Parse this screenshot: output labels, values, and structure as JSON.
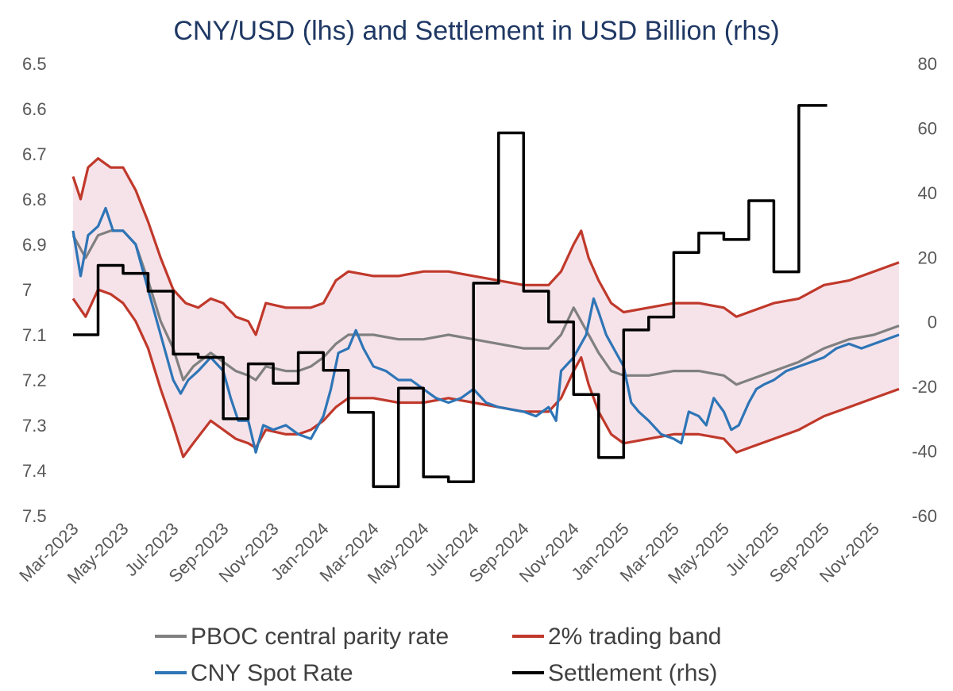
{
  "chart_data": {
    "type": "line",
    "title": "CNY/USD (lhs) and Settlement in USD Billion (rhs)",
    "left_axis": {
      "ticks": [
        "6.5",
        "6.6",
        "6.7",
        "6.8",
        "6.9",
        "7",
        "7.1",
        "7.2",
        "7.3",
        "7.4",
        "7.5"
      ],
      "min": 6.5,
      "max": 7.5,
      "inverted": true
    },
    "right_axis": {
      "ticks": [
        "80",
        "60",
        "40",
        "20",
        "0",
        "-20",
        "-40",
        "-60"
      ],
      "min": -60,
      "max": 80
    },
    "x_tick_labels": [
      "Mar-2023",
      "May-2023",
      "Jul-2023",
      "Sep-2023",
      "Nov-2023",
      "Jan-2024",
      "Mar-2024",
      "May-2024",
      "Jul-2024",
      "Sep-2024",
      "Nov-2024",
      "Jan-2025",
      "Mar-2025",
      "May-2025",
      "Jul-2025",
      "Sep-2025",
      "Nov-2025"
    ],
    "x_range_months": [
      0,
      33
    ],
    "legend": [
      {
        "name": "PBOC central parity rate",
        "color": "#808080"
      },
      {
        "name": "2% trading band",
        "color": "#c0392b"
      },
      {
        "name": "CNY Spot Rate",
        "color": "#2e75b6"
      },
      {
        "name": "Settlement (rhs)",
        "color": "#000000"
      }
    ],
    "band_fill_color": "#f6e3ea",
    "series": [
      {
        "name": "PBOC central parity rate",
        "axis": "left",
        "color": "#808080",
        "points": [
          [
            0,
            6.88
          ],
          [
            0.5,
            6.93
          ],
          [
            1,
            6.88
          ],
          [
            1.5,
            6.87
          ],
          [
            2,
            6.87
          ],
          [
            2.5,
            6.9
          ],
          [
            3,
            6.98
          ],
          [
            3.5,
            7.07
          ],
          [
            4,
            7.13
          ],
          [
            4.4,
            7.2
          ],
          [
            4.8,
            7.17
          ],
          [
            5.5,
            7.14
          ],
          [
            6,
            7.16
          ],
          [
            6.5,
            7.18
          ],
          [
            7,
            7.19
          ],
          [
            7.3,
            7.2
          ],
          [
            7.7,
            7.17
          ],
          [
            8.5,
            7.18
          ],
          [
            9,
            7.18
          ],
          [
            9.5,
            7.17
          ],
          [
            10,
            7.15
          ],
          [
            10.5,
            7.12
          ],
          [
            11,
            7.1
          ],
          [
            12,
            7.1
          ],
          [
            13,
            7.11
          ],
          [
            14,
            7.11
          ],
          [
            15,
            7.1
          ],
          [
            16,
            7.11
          ],
          [
            17,
            7.12
          ],
          [
            18,
            7.13
          ],
          [
            19,
            7.13
          ],
          [
            19.5,
            7.1
          ],
          [
            20,
            7.04
          ],
          [
            20.5,
            7.09
          ],
          [
            21,
            7.14
          ],
          [
            21.5,
            7.18
          ],
          [
            22,
            7.19
          ],
          [
            23,
            7.19
          ],
          [
            24,
            7.18
          ],
          [
            25,
            7.18
          ],
          [
            26,
            7.19
          ],
          [
            26.5,
            7.21
          ],
          [
            27,
            7.2
          ],
          [
            28,
            7.18
          ],
          [
            29,
            7.16
          ],
          [
            30,
            7.13
          ],
          [
            31,
            7.11
          ],
          [
            32,
            7.1
          ],
          [
            33,
            7.08
          ]
        ]
      },
      {
        "name": "2% trading band (upper)",
        "axis": "left",
        "color": "#c0392b",
        "points": [
          [
            0,
            6.75
          ],
          [
            0.3,
            6.8
          ],
          [
            0.6,
            6.73
          ],
          [
            1,
            6.71
          ],
          [
            1.5,
            6.73
          ],
          [
            2,
            6.73
          ],
          [
            2.5,
            6.78
          ],
          [
            3,
            6.85
          ],
          [
            3.5,
            6.93
          ],
          [
            4,
            7.0
          ],
          [
            4.5,
            7.03
          ],
          [
            5,
            7.04
          ],
          [
            5.5,
            7.02
          ],
          [
            6,
            7.03
          ],
          [
            6.5,
            7.06
          ],
          [
            7,
            7.07
          ],
          [
            7.3,
            7.1
          ],
          [
            7.7,
            7.03
          ],
          [
            8.5,
            7.04
          ],
          [
            9,
            7.04
          ],
          [
            9.5,
            7.04
          ],
          [
            10,
            7.03
          ],
          [
            10.5,
            6.98
          ],
          [
            11,
            6.96
          ],
          [
            12,
            6.97
          ],
          [
            13,
            6.97
          ],
          [
            14,
            6.96
          ],
          [
            15,
            6.96
          ],
          [
            16,
            6.97
          ],
          [
            17,
            6.98
          ],
          [
            18,
            6.99
          ],
          [
            19,
            6.99
          ],
          [
            19.5,
            6.96
          ],
          [
            20,
            6.9
          ],
          [
            20.3,
            6.87
          ],
          [
            20.6,
            6.93
          ],
          [
            21,
            6.98
          ],
          [
            21.5,
            7.03
          ],
          [
            22,
            7.05
          ],
          [
            23,
            7.04
          ],
          [
            24,
            7.03
          ],
          [
            25,
            7.03
          ],
          [
            26,
            7.04
          ],
          [
            26.5,
            7.06
          ],
          [
            27,
            7.05
          ],
          [
            28,
            7.03
          ],
          [
            29,
            7.02
          ],
          [
            30,
            6.99
          ],
          [
            31,
            6.98
          ],
          [
            32,
            6.96
          ],
          [
            33,
            6.94
          ]
        ]
      },
      {
        "name": "2% trading band (lower)",
        "axis": "left",
        "color": "#c0392b",
        "points": [
          [
            0,
            7.02
          ],
          [
            0.5,
            7.06
          ],
          [
            1,
            7.0
          ],
          [
            1.5,
            7.01
          ],
          [
            2,
            7.03
          ],
          [
            2.5,
            7.07
          ],
          [
            3,
            7.13
          ],
          [
            3.5,
            7.22
          ],
          [
            4,
            7.3
          ],
          [
            4.4,
            7.37
          ],
          [
            4.8,
            7.34
          ],
          [
            5.5,
            7.29
          ],
          [
            6,
            7.31
          ],
          [
            6.5,
            7.33
          ],
          [
            7,
            7.34
          ],
          [
            7.3,
            7.35
          ],
          [
            7.7,
            7.31
          ],
          [
            8.5,
            7.32
          ],
          [
            9,
            7.32
          ],
          [
            9.5,
            7.31
          ],
          [
            10,
            7.29
          ],
          [
            10.5,
            7.26
          ],
          [
            11,
            7.24
          ],
          [
            12,
            7.24
          ],
          [
            13,
            7.25
          ],
          [
            14,
            7.25
          ],
          [
            15,
            7.24
          ],
          [
            16,
            7.25
          ],
          [
            17,
            7.26
          ],
          [
            18,
            7.27
          ],
          [
            19,
            7.27
          ],
          [
            19.5,
            7.24
          ],
          [
            20,
            7.18
          ],
          [
            20.3,
            7.15
          ],
          [
            20.6,
            7.21
          ],
          [
            21,
            7.27
          ],
          [
            21.5,
            7.32
          ],
          [
            22,
            7.34
          ],
          [
            23,
            7.33
          ],
          [
            24,
            7.32
          ],
          [
            25,
            7.32
          ],
          [
            26,
            7.33
          ],
          [
            26.5,
            7.36
          ],
          [
            27,
            7.35
          ],
          [
            28,
            7.33
          ],
          [
            29,
            7.31
          ],
          [
            30,
            7.28
          ],
          [
            31,
            7.26
          ],
          [
            32,
            7.24
          ],
          [
            33,
            7.22
          ]
        ]
      },
      {
        "name": "CNY Spot Rate",
        "axis": "left",
        "color": "#2e75b6",
        "points": [
          [
            0,
            6.87
          ],
          [
            0.3,
            6.97
          ],
          [
            0.6,
            6.88
          ],
          [
            1,
            6.86
          ],
          [
            1.3,
            6.82
          ],
          [
            1.6,
            6.87
          ],
          [
            2,
            6.87
          ],
          [
            2.5,
            6.9
          ],
          [
            3,
            7.0
          ],
          [
            3.5,
            7.1
          ],
          [
            4,
            7.2
          ],
          [
            4.3,
            7.23
          ],
          [
            4.6,
            7.2
          ],
          [
            5,
            7.18
          ],
          [
            5.5,
            7.15
          ],
          [
            6,
            7.18
          ],
          [
            6.3,
            7.24
          ],
          [
            6.6,
            7.29
          ],
          [
            7,
            7.29
          ],
          [
            7.3,
            7.36
          ],
          [
            7.6,
            7.3
          ],
          [
            8,
            7.31
          ],
          [
            8.5,
            7.3
          ],
          [
            9,
            7.32
          ],
          [
            9.5,
            7.33
          ],
          [
            10,
            7.28
          ],
          [
            10.3,
            7.22
          ],
          [
            10.6,
            7.14
          ],
          [
            11,
            7.13
          ],
          [
            11.3,
            7.09
          ],
          [
            11.6,
            7.13
          ],
          [
            12,
            7.17
          ],
          [
            12.5,
            7.18
          ],
          [
            13,
            7.2
          ],
          [
            13.5,
            7.2
          ],
          [
            14,
            7.22
          ],
          [
            14.5,
            7.24
          ],
          [
            15,
            7.25
          ],
          [
            15.5,
            7.24
          ],
          [
            16,
            7.22
          ],
          [
            16.5,
            7.25
          ],
          [
            17,
            7.26
          ],
          [
            18,
            7.27
          ],
          [
            18.5,
            7.28
          ],
          [
            19,
            7.26
          ],
          [
            19.3,
            7.29
          ],
          [
            19.5,
            7.18
          ],
          [
            20,
            7.15
          ],
          [
            20.5,
            7.1
          ],
          [
            20.8,
            7.02
          ],
          [
            21,
            7.05
          ],
          [
            21.3,
            7.1
          ],
          [
            21.6,
            7.13
          ],
          [
            22,
            7.17
          ],
          [
            22.3,
            7.25
          ],
          [
            22.6,
            7.27
          ],
          [
            23,
            7.29
          ],
          [
            23.5,
            7.32
          ],
          [
            24,
            7.33
          ],
          [
            24.3,
            7.34
          ],
          [
            24.6,
            7.27
          ],
          [
            25,
            7.28
          ],
          [
            25.3,
            7.3
          ],
          [
            25.6,
            7.24
          ],
          [
            26,
            7.27
          ],
          [
            26.3,
            7.31
          ],
          [
            26.6,
            7.3
          ],
          [
            27,
            7.25
          ],
          [
            27.3,
            7.22
          ],
          [
            27.6,
            7.21
          ],
          [
            28,
            7.2
          ],
          [
            28.5,
            7.18
          ],
          [
            29,
            7.17
          ],
          [
            29.5,
            7.16
          ],
          [
            30,
            7.15
          ],
          [
            30.5,
            7.13
          ],
          [
            31,
            7.12
          ],
          [
            31.5,
            7.13
          ],
          [
            32,
            7.12
          ],
          [
            32.5,
            7.11
          ],
          [
            33,
            7.1
          ]
        ]
      },
      {
        "name": "Settlement (rhs)",
        "axis": "right",
        "color": "#000000",
        "step": true,
        "points": [
          [
            0,
            -4
          ],
          [
            1,
            17.5
          ],
          [
            2,
            15
          ],
          [
            3,
            9.5
          ],
          [
            4,
            -10
          ],
          [
            5,
            -11
          ],
          [
            6,
            -30
          ],
          [
            7,
            -13
          ],
          [
            8,
            -19
          ],
          [
            9,
            -9.5
          ],
          [
            10,
            -15
          ],
          [
            11,
            -28
          ],
          [
            12,
            -51
          ],
          [
            13,
            -20.5
          ],
          [
            14,
            -48
          ],
          [
            15,
            -49.5
          ],
          [
            16,
            12
          ],
          [
            17,
            58.5
          ],
          [
            18,
            9.5
          ],
          [
            19,
            0
          ],
          [
            20,
            -22.5
          ],
          [
            21,
            -42
          ],
          [
            22,
            -2.5
          ],
          [
            23,
            1.5
          ],
          [
            24,
            21.5
          ],
          [
            25,
            27.5
          ],
          [
            26,
            25.5
          ],
          [
            27,
            37.5
          ],
          [
            28,
            15.5
          ],
          [
            29,
            67
          ],
          [
            30,
            67
          ]
        ]
      }
    ]
  }
}
